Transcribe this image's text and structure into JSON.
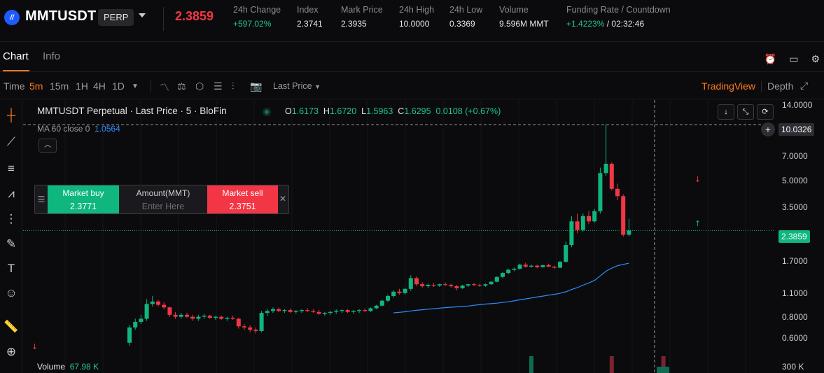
{
  "ticker": {
    "symbol": "MMTUSDT",
    "badge": "PERP",
    "last_price": "2.3859",
    "stats": [
      {
        "label": "24h Change",
        "value": "+597.02%",
        "color": "#22c38e"
      },
      {
        "label": "Index",
        "value": "2.3741"
      },
      {
        "label": "Mark Price",
        "value": "2.3935"
      },
      {
        "label": "24h High",
        "value": "10.0000"
      },
      {
        "label": "24h Low",
        "value": "0.3369"
      },
      {
        "label": "Volume",
        "value": "9.596M MMT"
      },
      {
        "label": "Funding Rate / Countdown",
        "value_rate": "+1.4223%",
        "value_countdown": "/ 02:32:46"
      }
    ]
  },
  "tabs": {
    "chart": "Chart",
    "info": "Info"
  },
  "toolbar": {
    "time": "Time",
    "intervals": [
      "5m",
      "15m",
      "1H",
      "4H",
      "1D"
    ],
    "active_interval": "5m",
    "price_type": "Last Price",
    "tradingview": "TradingView",
    "depth": "Depth"
  },
  "legend": {
    "title": "MMTUSDT Perpetual · Last Price · 5 · BloFin",
    "o_label": "O",
    "o": "1.6173",
    "h_label": "H",
    "h": "1.6720",
    "l_label": "L",
    "l": "1.5963",
    "c_label": "C",
    "c": "1.6295",
    "change": "0.0108 (+0.67%)",
    "ma_label": "MA 60 close 0",
    "ma_value": "1.0564"
  },
  "trade_widget": {
    "buy_label": "Market buy",
    "buy_price": "2.3771",
    "amount_label": "Amount(MMT)",
    "amount_placeholder": "Enter Here",
    "sell_label": "Market sell",
    "sell_price": "2.3751"
  },
  "volume": {
    "label": "Volume",
    "value": "67.98 K",
    "axis_label": "300 K"
  },
  "y_axis": {
    "ticks": [
      "14.0000",
      "7.0000",
      "5.0000",
      "3.5000",
      "1.7000",
      "1.1000",
      "0.8000",
      "0.6000"
    ],
    "crosshair_value": "10.0326",
    "current_price": "2.3859"
  },
  "colors": {
    "up": "#0fb67e",
    "down": "#f23645",
    "accent": "#ff7a1a",
    "ma": "#2f8cff"
  },
  "chart_data": {
    "type": "candlestick",
    "scale": "log",
    "ylim": [
      0.45,
      14
    ],
    "interval": "5m",
    "candles": [
      [
        0.52,
        0.66,
        0.5,
        0.64
      ],
      [
        0.64,
        0.72,
        0.62,
        0.69
      ],
      [
        0.69,
        0.76,
        0.67,
        0.72
      ],
      [
        0.72,
        0.94,
        0.7,
        0.88
      ],
      [
        0.88,
        0.98,
        0.85,
        0.91
      ],
      [
        0.91,
        0.93,
        0.85,
        0.87
      ],
      [
        0.87,
        0.9,
        0.82,
        0.84
      ],
      [
        0.84,
        0.85,
        0.74,
        0.76
      ],
      [
        0.76,
        0.79,
        0.72,
        0.74
      ],
      [
        0.74,
        0.78,
        0.72,
        0.76
      ],
      [
        0.76,
        0.78,
        0.73,
        0.74
      ],
      [
        0.74,
        0.76,
        0.7,
        0.72
      ],
      [
        0.72,
        0.76,
        0.7,
        0.74
      ],
      [
        0.74,
        0.77,
        0.72,
        0.75
      ],
      [
        0.75,
        0.76,
        0.72,
        0.73
      ],
      [
        0.73,
        0.75,
        0.71,
        0.74
      ],
      [
        0.74,
        0.75,
        0.71,
        0.72
      ],
      [
        0.72,
        0.74,
        0.7,
        0.73
      ],
      [
        0.73,
        0.75,
        0.71,
        0.72
      ],
      [
        0.72,
        0.73,
        0.63,
        0.65
      ],
      [
        0.65,
        0.67,
        0.62,
        0.64
      ],
      [
        0.64,
        0.66,
        0.6,
        0.62
      ],
      [
        0.62,
        0.64,
        0.59,
        0.61
      ],
      [
        0.61,
        0.8,
        0.6,
        0.78
      ],
      [
        0.78,
        0.82,
        0.75,
        0.8
      ],
      [
        0.8,
        0.84,
        0.78,
        0.82
      ],
      [
        0.82,
        0.84,
        0.79,
        0.8
      ],
      [
        0.8,
        0.82,
        0.78,
        0.81
      ],
      [
        0.81,
        0.83,
        0.78,
        0.79
      ],
      [
        0.79,
        0.81,
        0.77,
        0.8
      ],
      [
        0.8,
        0.82,
        0.78,
        0.81
      ],
      [
        0.81,
        0.83,
        0.79,
        0.8
      ],
      [
        0.8,
        0.82,
        0.78,
        0.79
      ],
      [
        0.79,
        0.81,
        0.76,
        0.77
      ],
      [
        0.77,
        0.79,
        0.75,
        0.78
      ],
      [
        0.78,
        0.8,
        0.76,
        0.79
      ],
      [
        0.79,
        0.82,
        0.77,
        0.8
      ],
      [
        0.8,
        0.82,
        0.78,
        0.81
      ],
      [
        0.81,
        0.82,
        0.78,
        0.79
      ],
      [
        0.79,
        0.81,
        0.77,
        0.8
      ],
      [
        0.8,
        0.82,
        0.78,
        0.81
      ],
      [
        0.81,
        0.83,
        0.79,
        0.8
      ],
      [
        0.8,
        0.84,
        0.79,
        0.83
      ],
      [
        0.83,
        0.87,
        0.82,
        0.86
      ],
      [
        0.86,
        0.93,
        0.85,
        0.92
      ],
      [
        0.92,
        1.0,
        0.9,
        0.98
      ],
      [
        0.98,
        1.06,
        0.96,
        1.04
      ],
      [
        1.04,
        1.08,
        1.0,
        1.02
      ],
      [
        1.02,
        1.1,
        1.0,
        1.08
      ],
      [
        1.08,
        1.3,
        1.05,
        1.25
      ],
      [
        1.25,
        1.28,
        1.12,
        1.15
      ],
      [
        1.15,
        1.18,
        1.1,
        1.12
      ],
      [
        1.12,
        1.16,
        1.09,
        1.14
      ],
      [
        1.14,
        1.17,
        1.11,
        1.13
      ],
      [
        1.13,
        1.16,
        1.11,
        1.15
      ],
      [
        1.15,
        1.18,
        1.12,
        1.14
      ],
      [
        1.14,
        1.16,
        1.1,
        1.12
      ],
      [
        1.12,
        1.14,
        1.06,
        1.09
      ],
      [
        1.09,
        1.14,
        1.08,
        1.13
      ],
      [
        1.13,
        1.16,
        1.11,
        1.15
      ],
      [
        1.15,
        1.17,
        1.12,
        1.14
      ],
      [
        1.14,
        1.16,
        1.11,
        1.13
      ],
      [
        1.13,
        1.16,
        1.11,
        1.15
      ],
      [
        1.15,
        1.2,
        1.14,
        1.19
      ],
      [
        1.19,
        1.28,
        1.18,
        1.27
      ],
      [
        1.27,
        1.36,
        1.25,
        1.34
      ],
      [
        1.34,
        1.42,
        1.32,
        1.4
      ],
      [
        1.4,
        1.44,
        1.37,
        1.42
      ],
      [
        1.42,
        1.52,
        1.4,
        1.5
      ],
      [
        1.5,
        1.54,
        1.44,
        1.46
      ],
      [
        1.46,
        1.5,
        1.44,
        1.48
      ],
      [
        1.48,
        1.5,
        1.43,
        1.45
      ],
      [
        1.45,
        1.5,
        1.44,
        1.49
      ],
      [
        1.49,
        1.52,
        1.45,
        1.46
      ],
      [
        1.46,
        1.48,
        1.42,
        1.44
      ],
      [
        1.44,
        1.58,
        1.43,
        1.56
      ],
      [
        1.56,
        2.05,
        1.54,
        1.96
      ],
      [
        1.96,
        2.9,
        1.9,
        2.7
      ],
      [
        2.7,
        3.0,
        2.3,
        2.4
      ],
      [
        2.4,
        3.0,
        2.35,
        2.9
      ],
      [
        2.9,
        3.1,
        2.6,
        2.7
      ],
      [
        2.7,
        3.2,
        2.65,
        3.1
      ],
      [
        3.1,
        5.6,
        3.0,
        5.2
      ],
      [
        5.2,
        10.03,
        5.0,
        5.9
      ],
      [
        5.9,
        6.0,
        4.1,
        4.2
      ],
      [
        4.2,
        4.5,
        3.6,
        3.8
      ],
      [
        3.8,
        3.9,
        2.2,
        2.25
      ],
      [
        2.25,
        2.8,
        2.2,
        2.3859
      ]
    ],
    "ma60": {
      "label": "MA 60 close 0",
      "current": 1.0564
    }
  }
}
